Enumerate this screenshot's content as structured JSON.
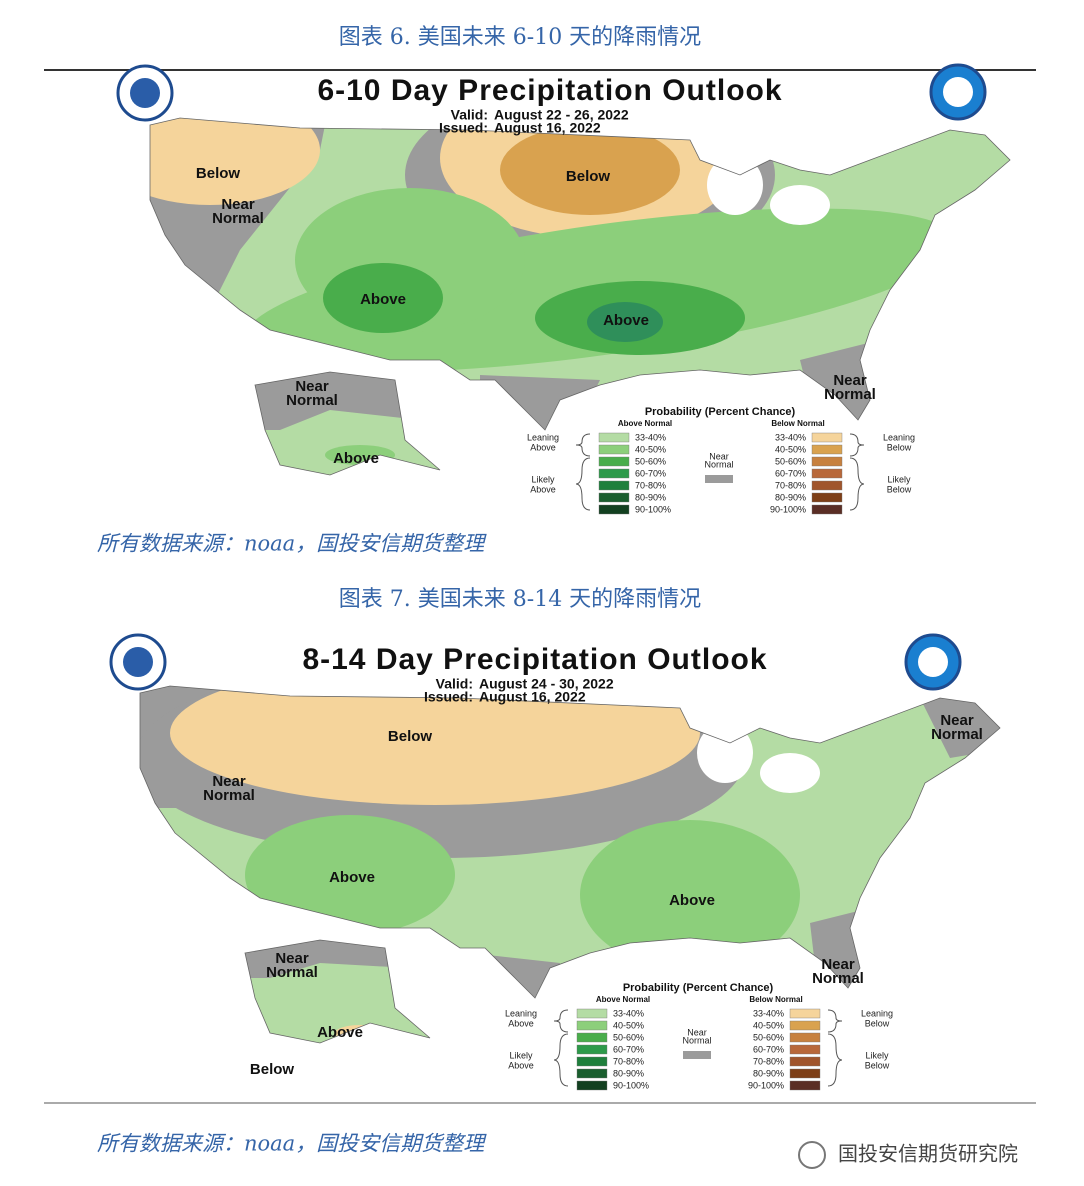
{
  "figures": [
    {
      "caption": "图表 6. 美国未来 6-10 天的降雨情况",
      "map": {
        "title": "6-10 Day Precipitation Outlook",
        "valid_label": "Valid:",
        "valid": "August 22 - 26, 2022",
        "issued_label": "Issued:",
        "issued": "August 16, 2022",
        "regions": [
          [
            "Below"
          ],
          [
            "Below"
          ],
          [
            "Near",
            "Normal"
          ],
          [
            "Above"
          ],
          [
            "Above"
          ],
          [
            "Near",
            "Normal"
          ],
          [
            "Near",
            "Normal"
          ],
          [
            "Above"
          ]
        ]
      },
      "legend": {
        "title": "Probability (Percent Chance)",
        "above_heading": "Above Normal",
        "below_heading": "Below Normal",
        "leaning_above": [
          "Leaning",
          "Above"
        ],
        "likely_above": [
          "Likely",
          "Above"
        ],
        "near_normal": [
          "Near",
          "Normal"
        ],
        "leaning_below": [
          "Leaning",
          "Below"
        ],
        "likely_below": [
          "Likely",
          "Below"
        ],
        "above_ranges": [
          "33-40%",
          "40-50%",
          "50-60%",
          "60-70%",
          "70-80%",
          "80-90%",
          "90-100%"
        ],
        "below_ranges": [
          "33-40%",
          "40-50%",
          "50-60%",
          "60-70%",
          "70-80%",
          "80-90%",
          "90-100%"
        ],
        "above_colors": [
          "#b4dca4",
          "#8ccf7b",
          "#49ad4b",
          "#2d9a4a",
          "#1f7f3c",
          "#1a5e2e",
          "#124020"
        ],
        "below_colors": [
          "#f5d49b",
          "#d9a24f",
          "#c7813f",
          "#b8683a",
          "#a0552c",
          "#7e3f17",
          "#5a2e25"
        ],
        "near_color": "#9b9b9b"
      },
      "source": "所有数据来源：noaa，国投安信期货整理"
    },
    {
      "caption": "图表 7. 美国未来 8-14 天的降雨情况",
      "map": {
        "title": "8-14 Day Precipitation Outlook",
        "valid_label": "Valid:",
        "valid": "August 24 - 30, 2022",
        "issued_label": "Issued:",
        "issued": "August 16, 2022",
        "regions": [
          [
            "Below"
          ],
          [
            "Near",
            "Normal"
          ],
          [
            "Above"
          ],
          [
            "Above"
          ],
          [
            "Near",
            "Normal"
          ],
          [
            "Near",
            "Normal"
          ],
          [
            "Near",
            "Normal"
          ],
          [
            "Above"
          ],
          [
            "Below"
          ]
        ]
      },
      "legend": {
        "title": "Probability (Percent Chance)",
        "above_heading": "Above Normal",
        "below_heading": "Below Normal",
        "leaning_above": [
          "Leaning",
          "Above"
        ],
        "likely_above": [
          "Likely",
          "Above"
        ],
        "near_normal": [
          "Near",
          "Normal"
        ],
        "leaning_below": [
          "Leaning",
          "Below"
        ],
        "likely_below": [
          "Likely",
          "Below"
        ],
        "above_ranges": [
          "33-40%",
          "40-50%",
          "50-60%",
          "60-70%",
          "70-80%",
          "80-90%",
          "90-100%"
        ],
        "below_ranges": [
          "33-40%",
          "40-50%",
          "50-60%",
          "60-70%",
          "70-80%",
          "80-90%",
          "90-100%"
        ],
        "above_colors": [
          "#b4dca4",
          "#8ccf7b",
          "#49ad4b",
          "#2d9a4a",
          "#1f7f3c",
          "#1a5e2e",
          "#124020"
        ],
        "below_colors": [
          "#f5d49b",
          "#d9a24f",
          "#c7813f",
          "#b8683a",
          "#a0552c",
          "#7e3f17",
          "#5a2e25"
        ],
        "near_color": "#9b9b9b"
      },
      "source": "所有数据来源：noaa，国投安信期货整理"
    }
  ],
  "watermark": "国投安信期货研究院"
}
